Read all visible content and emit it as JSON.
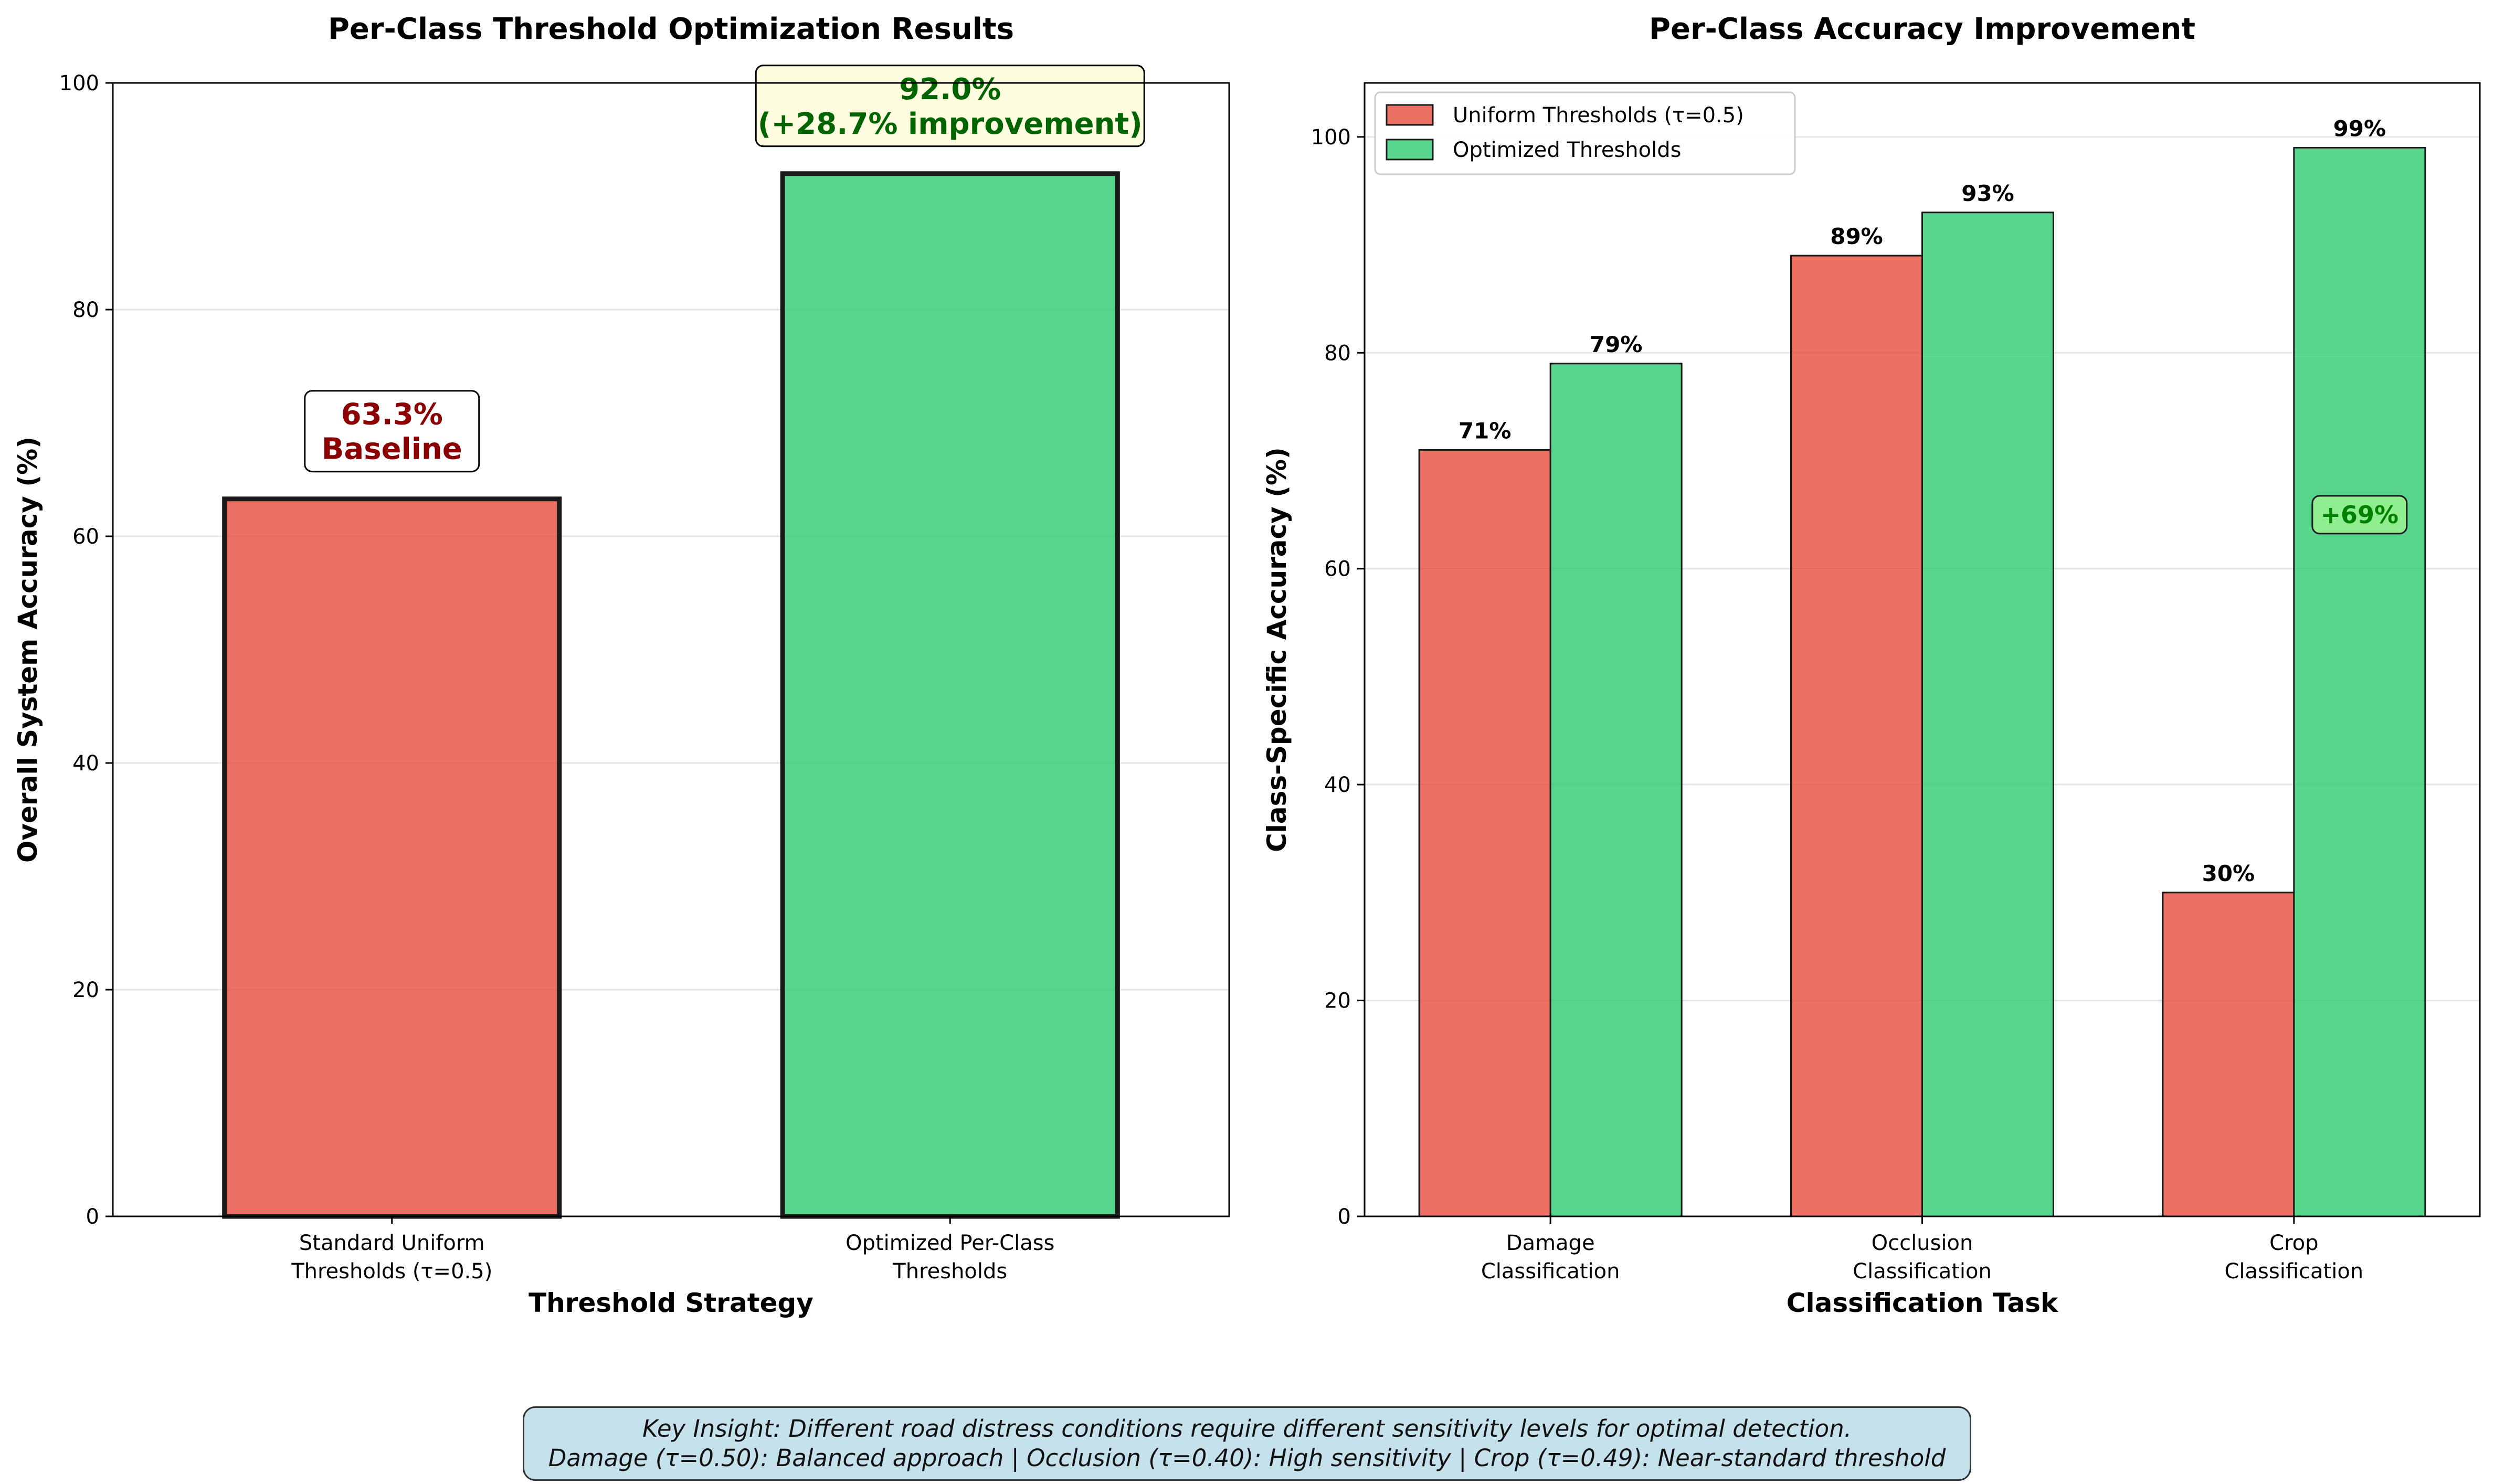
{
  "chart_data": [
    {
      "type": "bar",
      "title": "Per-Class Threshold Optimization Results",
      "xlabel": "Threshold Strategy",
      "ylabel": "Overall System Accuracy (%)",
      "ylim": [
        0,
        100
      ],
      "yticks": [
        "0",
        "20",
        "40",
        "60",
        "80",
        "100"
      ],
      "categories": [
        [
          "Standard Uniform",
          "Thresholds (τ=0.5)"
        ],
        [
          "Optimized Per-Class",
          "Thresholds"
        ]
      ],
      "values": [
        63.3,
        92.0
      ],
      "colors": [
        "#e74c3c",
        "#2ecc71"
      ],
      "grid": "y",
      "annotations": [
        {
          "lines": [
            "63.3%",
            "Baseline"
          ],
          "color": "#8b0000",
          "box_fill": "#ffffff"
        },
        {
          "lines": [
            "92.0%",
            "(+28.7% improvement)"
          ],
          "color": "#006400",
          "box_fill": "#fffde0"
        }
      ]
    },
    {
      "type": "bar",
      "title": "Per-Class Accuracy Improvement",
      "xlabel": "Classification Task",
      "ylabel": "Class-Specific Accuracy (%)",
      "ylim": [
        0,
        105
      ],
      "yticks": [
        "0",
        "20",
        "40",
        "60",
        "80",
        "100"
      ],
      "categories": [
        [
          "Damage",
          "Classification"
        ],
        [
          "Occlusion",
          "Classification"
        ],
        [
          "Crop",
          "Classification"
        ]
      ],
      "series": [
        {
          "name": "Uniform Thresholds (τ=0.5)",
          "values": [
            71,
            89,
            30
          ],
          "labels": [
            "71%",
            "89%",
            "30%"
          ],
          "color": "#e74c3c"
        },
        {
          "name": "Optimized Thresholds",
          "values": [
            79,
            93,
            99
          ],
          "labels": [
            "79%",
            "93%",
            "99%"
          ],
          "color": "#2ecc71"
        }
      ],
      "legend": "top-left",
      "grid": "y",
      "annotation": {
        "text": "+69%",
        "category": "Crop",
        "y": 65,
        "color": "#008000",
        "box_fill": "#90ee90"
      }
    }
  ],
  "insight": {
    "line1": "Key Insight: Different road distress conditions require different sensitivity levels for optimal detection.",
    "line2": "Damage (τ=0.50): Balanced approach | Occlusion (τ=0.40): High sensitivity | Crop (τ=0.49): Near-standard threshold"
  }
}
